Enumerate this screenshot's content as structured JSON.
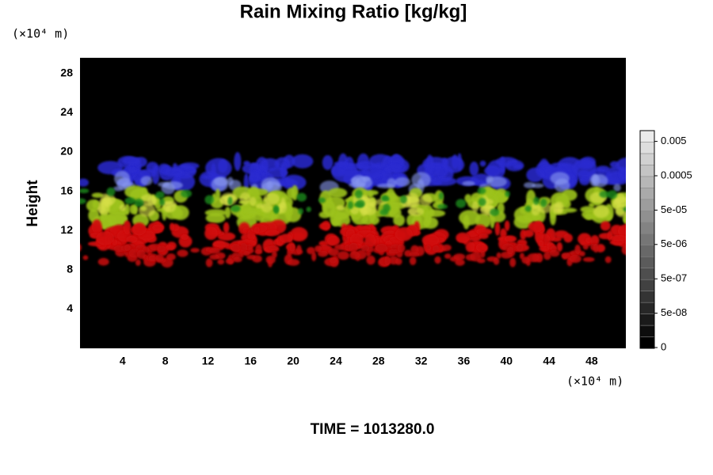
{
  "chart_data": {
    "type": "image",
    "title": "Rain Mixing Ratio [kg/kg]",
    "y_unit": "(×10⁴ m)",
    "x_unit": "(×10⁴ m)",
    "y_label": "Height",
    "footer": "TIME = 1013280.0",
    "xlim": [
      0,
      51.2
    ],
    "xticks": [
      4,
      8,
      12,
      16,
      20,
      24,
      28,
      32,
      36,
      40,
      44,
      48
    ],
    "ylim": [
      0,
      29.6
    ],
    "yticks": [
      4,
      8,
      12,
      16,
      20,
      24,
      28
    ],
    "grid": false,
    "colorbar": {
      "ticks": [
        0,
        {
          "value": 5e-08,
          "label": "5e-08"
        },
        {
          "value": 5e-07,
          "label": "5e-07"
        },
        {
          "value": 5e-06,
          "label": "5e-06"
        },
        {
          "value": 5e-05,
          "label": "5e-05"
        },
        0.0005,
        0.005
      ]
    }
  }
}
